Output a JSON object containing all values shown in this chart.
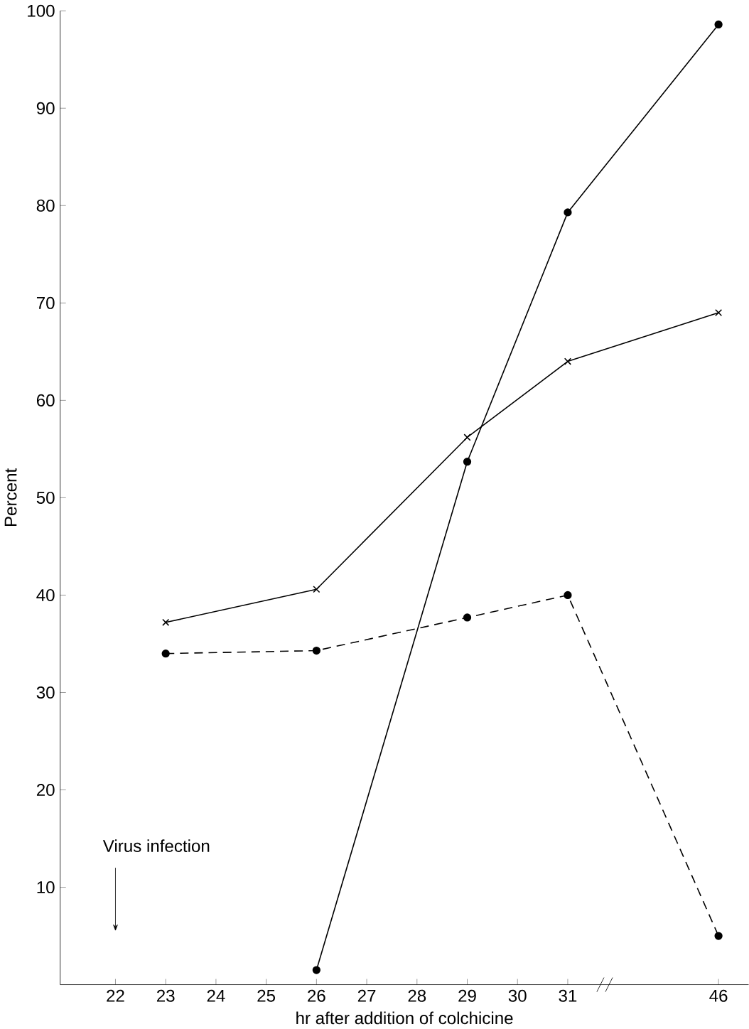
{
  "chart_data": {
    "type": "line",
    "xlabel": "hr after addition of colchicine",
    "ylabel": "Percent",
    "categories": [
      "22",
      "23",
      "24",
      "25",
      "26",
      "27",
      "28",
      "29",
      "30",
      "31",
      null,
      null,
      "46"
    ],
    "series": [
      {
        "color": "#000000",
        "marker": "circle",
        "line_style": "solid",
        "values": [
          null,
          null,
          null,
          null,
          1.5,
          null,
          null,
          53.7,
          null,
          79.3,
          null,
          null,
          98.6
        ]
      },
      {
        "color": "#000000",
        "marker": "cross",
        "line_style": "solid",
        "values": [
          null,
          37.2,
          null,
          null,
          40.6,
          null,
          null,
          56.2,
          null,
          64.0,
          null,
          null,
          69.0
        ]
      },
      {
        "color": "#000000",
        "marker": "circle",
        "line_style": "dashed",
        "values": [
          null,
          34.0,
          null,
          null,
          34.3,
          null,
          null,
          37.7,
          null,
          40.0,
          null,
          null,
          5.0
        ]
      }
    ],
    "ylim": [
      0,
      100
    ],
    "yticks": [
      10,
      20,
      30,
      40,
      50,
      60,
      70,
      80,
      90,
      100
    ],
    "annotations": [
      "Virus infection"
    ],
    "grid": false
  }
}
